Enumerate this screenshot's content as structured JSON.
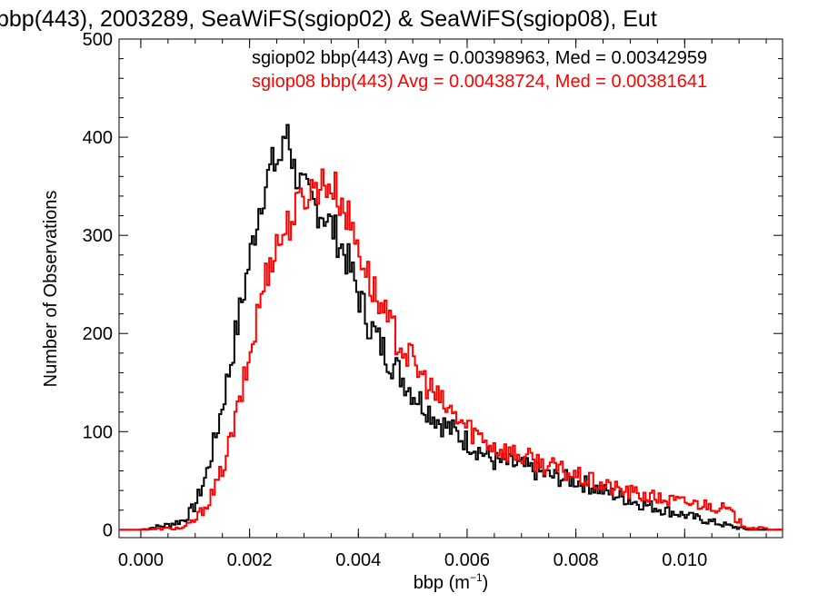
{
  "chart_data": {
    "type": "line",
    "title": "bbp(443), 2003289, SeaWiFS(sgiop02) & SeaWiFS(sgiop08), Eut",
    "xlabel_base": "bbp (m",
    "xlabel_sup": "−1",
    "xlabel_close": ")",
    "ylabel": "Number of Observations",
    "xlim": [
      -0.0004,
      0.0118
    ],
    "ylim": [
      -8,
      500
    ],
    "x_ticks": [
      0.0,
      0.002,
      0.004,
      0.006,
      0.008,
      0.01
    ],
    "x_tick_labels": [
      "0.000",
      "0.002",
      "0.004",
      "0.006",
      "0.008",
      "0.010"
    ],
    "y_ticks": [
      0,
      100,
      200,
      300,
      400,
      500
    ],
    "y_tick_labels": [
      "0",
      "100",
      "200",
      "300",
      "400",
      "500"
    ],
    "legend": [
      {
        "text": "sgiop02 bbp(443) Avg = 0.00398963, Med = 0.00342959",
        "color": "#000000"
      },
      {
        "text": "sgiop08 bbp(443) Avg = 0.00438724, Med = 0.00381641",
        "color": "#ff0000"
      }
    ],
    "series": [
      {
        "color": "#000000",
        "x": [
          0.0,
          0.0005,
          0.0008,
          0.001,
          0.0012,
          0.0014,
          0.0016,
          0.0018,
          0.002,
          0.0022,
          0.0024,
          0.0026,
          0.0027,
          0.0028,
          0.003,
          0.0032,
          0.0034,
          0.0036,
          0.0038,
          0.004,
          0.0042,
          0.0045,
          0.005,
          0.0055,
          0.006,
          0.0065,
          0.007,
          0.0075,
          0.008,
          0.0085,
          0.009,
          0.0095,
          0.01,
          0.0105,
          0.0109,
          0.0112,
          0.0118
        ],
        "y": [
          0,
          5,
          10,
          25,
          55,
          100,
          155,
          215,
          275,
          335,
          370,
          380,
          415,
          370,
          345,
          330,
          320,
          300,
          275,
          240,
          210,
          180,
          140,
          110,
          90,
          70,
          65,
          55,
          50,
          40,
          30,
          22,
          15,
          8,
          3,
          0,
          0
        ]
      },
      {
        "color": "#ff0000",
        "x": [
          0.0,
          0.0008,
          0.001,
          0.0012,
          0.0014,
          0.0016,
          0.0018,
          0.002,
          0.0022,
          0.0024,
          0.0026,
          0.0028,
          0.003,
          0.0032,
          0.0034,
          0.0036,
          0.0038,
          0.004,
          0.0042,
          0.0045,
          0.005,
          0.0055,
          0.006,
          0.0065,
          0.007,
          0.0075,
          0.008,
          0.0085,
          0.009,
          0.0095,
          0.01,
          0.0105,
          0.0108,
          0.011,
          0.0112,
          0.0118
        ],
        "y": [
          0,
          2,
          10,
          25,
          45,
          80,
          125,
          175,
          235,
          280,
          300,
          320,
          340,
          350,
          355,
          345,
          320,
          290,
          255,
          215,
          170,
          130,
          105,
          85,
          75,
          65,
          55,
          45,
          38,
          32,
          28,
          25,
          20,
          8,
          2,
          0
        ]
      }
    ]
  }
}
